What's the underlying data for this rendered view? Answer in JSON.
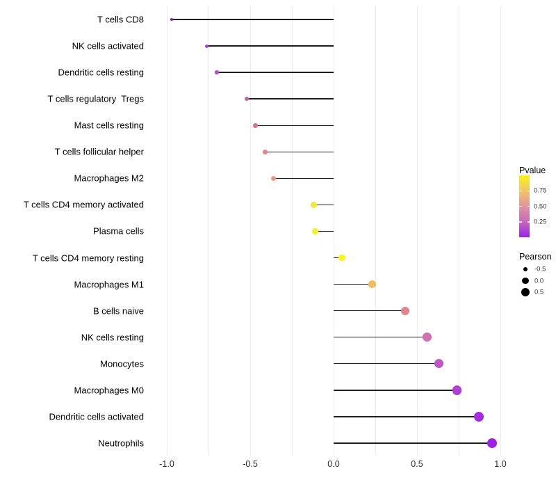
{
  "chart_data": {
    "type": "lollipop",
    "title": "",
    "xlabel": "",
    "ylabel": "",
    "grid": "vertical-only",
    "xlim": [
      -1.11,
      1.1
    ],
    "x_ticks": [
      -1.0,
      -0.5,
      0.0,
      0.5,
      1.0
    ],
    "x_tick_labels": [
      "-1.0",
      "-0.5",
      "0.0",
      "0.5",
      "1.0"
    ],
    "grid_step": 0.25,
    "categories": [
      "T cells CD8",
      "NK cells activated",
      "Dendritic cells resting",
      "T cells regulatory  Tregs",
      "Mast cells resting",
      "T cells follicular helper",
      "Macrophages M2",
      "T cells CD4 memory activated",
      "Plasma cells",
      "T cells CD4 memory resting",
      "Macrophages M1",
      "B cells naive",
      "NK cells resting",
      "Monocytes",
      "Macrophages M0",
      "Dendritic cells activated",
      "Neutrophils"
    ],
    "series": [
      {
        "name": "Pearson",
        "values": [
          -0.97,
          -0.76,
          -0.7,
          -0.52,
          -0.47,
          -0.41,
          -0.36,
          -0.12,
          -0.11,
          0.05,
          0.23,
          0.43,
          0.56,
          0.63,
          0.74,
          0.87,
          0.95
        ]
      },
      {
        "name": "Pvalue (approx, encoded by color)",
        "values": [
          0.05,
          0.15,
          0.2,
          0.35,
          0.45,
          0.5,
          0.6,
          0.9,
          0.92,
          0.97,
          0.72,
          0.5,
          0.42,
          0.3,
          0.2,
          0.1,
          0.04
        ]
      }
    ],
    "point_colors": [
      "#7d1fc8",
      "#a346c3",
      "#b254be",
      "#c463a0",
      "#d3758f",
      "#de8a82",
      "#e89c77",
      "#f2e838",
      "#f5ef26",
      "#fbf60f",
      "#eebd5e",
      "#de8590",
      "#d06fb2",
      "#c156c7",
      "#b23fd4",
      "#a52ae0",
      "#9c20e5"
    ],
    "stem_color": "#1c1c1c",
    "gridline_color": "#ebebeb",
    "legend": {
      "position": "right",
      "pvalue": {
        "title": "Pvalue",
        "gradient_top_to_bottom": [
          "#fbf518",
          "#f2c468",
          "#e294a0",
          "#c767bb",
          "#9a22e8"
        ],
        "range": [
          0,
          1
        ],
        "ticks": [
          {
            "label": "0.75",
            "value": 0.75
          },
          {
            "label": "0.50",
            "value": 0.5
          },
          {
            "label": "0.25",
            "value": 0.25
          }
        ]
      },
      "pearson": {
        "title": "Pearson",
        "entries": [
          {
            "label": "-0.5",
            "value": -0.5
          },
          {
            "label": "0.0",
            "value": 0.0
          },
          {
            "label": "0.5",
            "value": 0.5
          }
        ]
      }
    }
  }
}
